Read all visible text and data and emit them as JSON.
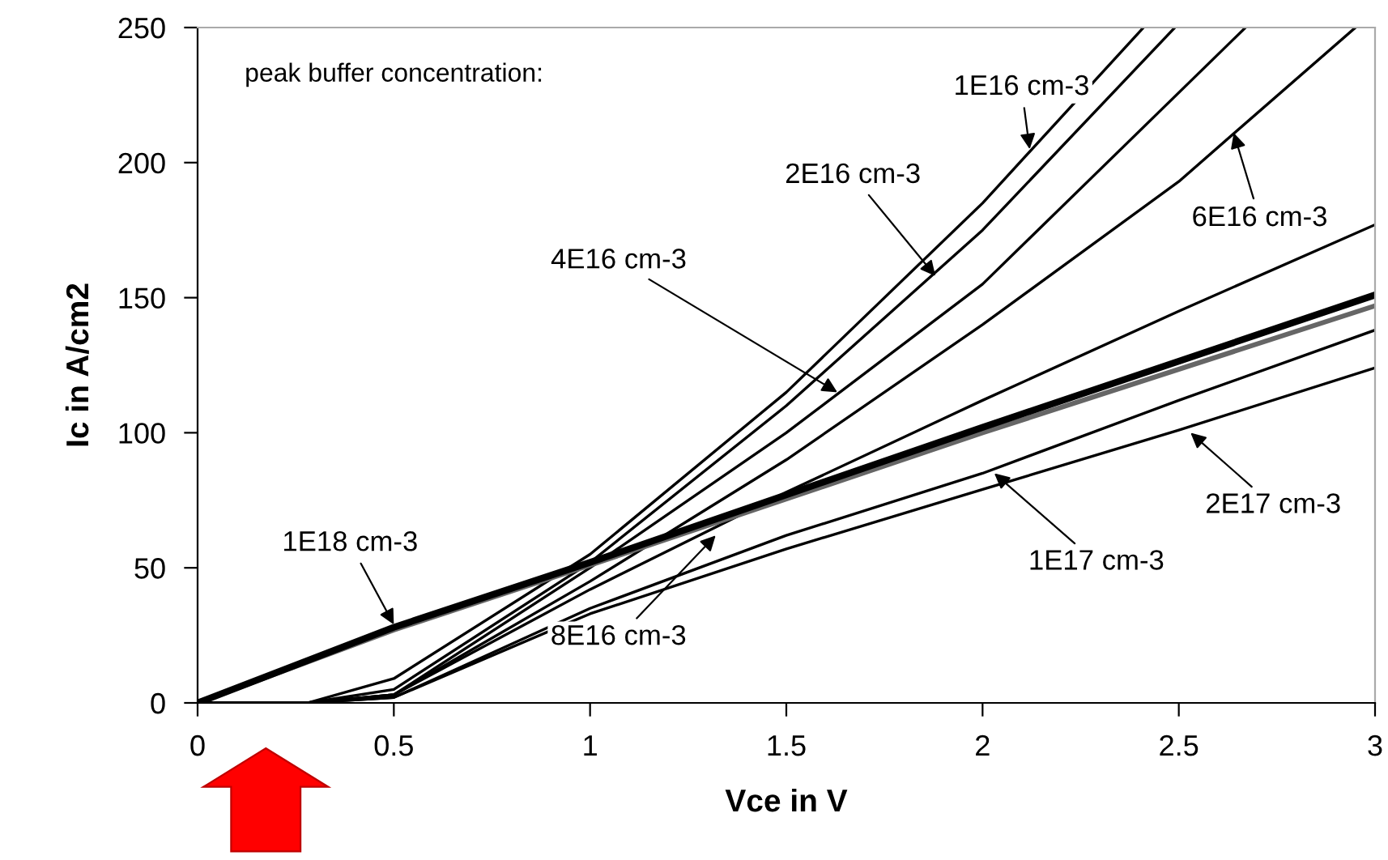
{
  "chart_data": {
    "type": "line",
    "xlabel": "Vce in V",
    "ylabel": "Ic in A/cm2",
    "xlim": [
      0,
      3
    ],
    "ylim": [
      0,
      250
    ],
    "xticks": [
      0,
      0.5,
      1,
      1.5,
      2,
      2.5,
      3
    ],
    "yticks": [
      0,
      50,
      100,
      150,
      200,
      250
    ],
    "grid": false,
    "legend": false,
    "marker": "none",
    "line_style": "solid",
    "series": [
      {
        "color": "#000000",
        "x": [
          0,
          0.28,
          0.5,
          1.0,
          1.5,
          2.0,
          2.41
        ],
        "values": [
          0,
          0,
          9,
          55,
          115,
          185,
          250
        ]
      },
      {
        "color": "#000000",
        "x": [
          0,
          0.28,
          0.5,
          1.0,
          1.5,
          2.0,
          2.49
        ],
        "values": [
          0,
          0,
          5,
          52,
          110,
          175,
          250
        ]
      },
      {
        "color": "#000000",
        "x": [
          0,
          0.28,
          0.5,
          1.0,
          1.5,
          2.0,
          2.67
        ],
        "values": [
          0,
          0,
          3,
          50,
          100,
          155,
          250
        ]
      },
      {
        "color": "#000000",
        "x": [
          0,
          0.28,
          0.5,
          1.0,
          1.5,
          2.0,
          2.5,
          2.95
        ],
        "values": [
          0,
          0,
          3,
          45,
          90,
          140,
          193,
          250
        ]
      },
      {
        "color": "#000000",
        "x": [
          0,
          0.28,
          0.5,
          1.0,
          1.5,
          2.0,
          2.5,
          3.0
        ],
        "values": [
          0,
          0,
          3,
          42,
          78,
          112,
          145,
          177
        ]
      },
      {
        "color": "#000000",
        "x": [
          0,
          0.28,
          0.5,
          1.0,
          1.5,
          2.0,
          2.5,
          3.0
        ],
        "values": [
          0,
          0,
          2,
          35,
          62,
          85,
          112,
          138
        ]
      },
      {
        "color": "#000000",
        "x": [
          0,
          0.28,
          0.5,
          1.0,
          1.5,
          2.0,
          2.5,
          3.0
        ],
        "values": [
          0,
          0,
          2,
          33,
          57,
          79,
          101,
          124
        ]
      },
      {
        "color": "#666666",
        "x": [
          0,
          0.5,
          1.0,
          2.0,
          3.0
        ],
        "values": [
          0,
          27,
          51,
          100,
          147
        ]
      },
      {
        "color": "#000000",
        "x": [
          0,
          0.5,
          1.0,
          2.0,
          3.0
        ],
        "values": [
          0,
          28,
          52,
          102,
          151
        ]
      }
    ],
    "annotations": [
      "peak buffer concentration:",
      {
        "text": "1E16 cm-3",
        "x": 2.12,
        "y": 205
      },
      {
        "text": "2E16 cm-3",
        "x": 1.88,
        "y": 158
      },
      {
        "text": "4E16 cm-3",
        "x": 1.63,
        "y": 115
      },
      {
        "text": "6E16 cm-3",
        "x": 2.64,
        "y": 211
      },
      {
        "text": "8E16 cm-3",
        "x": 1.32,
        "y": 62
      },
      {
        "text": "1E17 cm-3",
        "x": 2.03,
        "y": 85
      },
      {
        "text": "2E17 cm-3",
        "x": 2.53,
        "y": 100
      },
      {
        "text": "1E18 cm-3",
        "x": 0.5,
        "y": 29
      }
    ]
  }
}
